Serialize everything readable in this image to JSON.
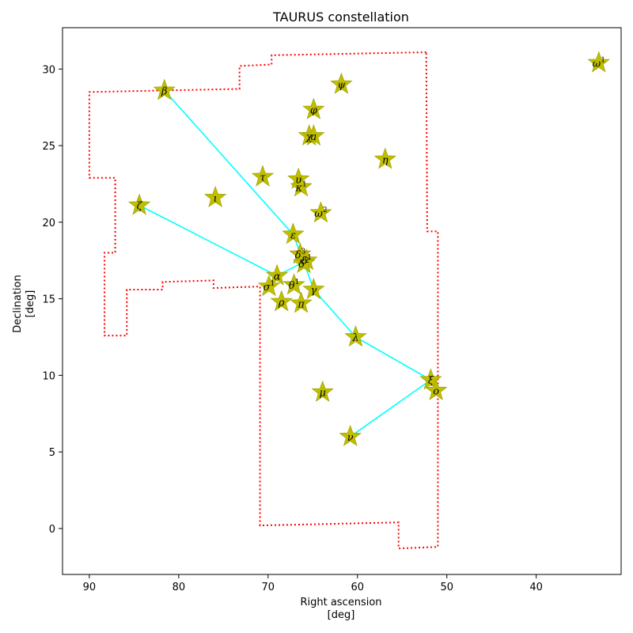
{
  "chart_data": {
    "type": "scatter",
    "title": "TAURUS constellation",
    "xlabel": [
      "Right ascension",
      "[deg]"
    ],
    "ylabel": [
      "Declination",
      "[deg]"
    ],
    "xlim": [
      93,
      30.5
    ],
    "ylim": [
      -3,
      32.7
    ],
    "x_inverted": true,
    "xticks": [
      90,
      80,
      70,
      60,
      50,
      40
    ],
    "yticks": [
      0,
      5,
      10,
      15,
      20,
      25,
      30
    ],
    "grid": false,
    "colors": {
      "boundary": "#ff0000",
      "lines": "#00ffff",
      "stars": "#bfbf00",
      "star_edge": "#9a9a00"
    },
    "stars": [
      {
        "label": "β",
        "sup": "",
        "ra": 81.6,
        "dec": 28.6
      },
      {
        "label": "ζ",
        "sup": "",
        "ra": 84.4,
        "dec": 21.1
      },
      {
        "label": "ι",
        "sup": "",
        "ra": 75.9,
        "dec": 21.6
      },
      {
        "label": "τ",
        "sup": "",
        "ra": 70.6,
        "dec": 22.96
      },
      {
        "label": "ψ",
        "sup": "",
        "ra": 61.8,
        "dec": 29.0
      },
      {
        "label": "φ",
        "sup": "",
        "ra": 64.9,
        "dec": 27.35
      },
      {
        "label": "χ",
        "sup": "",
        "ra": 65.4,
        "dec": 25.63
      },
      {
        "label": "a",
        "sup": "",
        "ra": 64.9,
        "dec": 25.63
      },
      {
        "label": "η",
        "sup": "",
        "ra": 56.9,
        "dec": 24.1
      },
      {
        "label": "υ",
        "sup": "",
        "ra": 66.6,
        "dec": 22.8
      },
      {
        "label": "κ",
        "sup": "1",
        "ra": 66.3,
        "dec": 22.3
      },
      {
        "label": "ω",
        "sup": "2",
        "ra": 64.1,
        "dec": 20.6
      },
      {
        "label": "ε",
        "sup": "",
        "ra": 67.2,
        "dec": 19.2
      },
      {
        "label": "δ",
        "sup": "3",
        "ra": 66.4,
        "dec": 17.9
      },
      {
        "label": "δ",
        "sup": "1",
        "ra": 65.7,
        "dec": 17.5
      },
      {
        "label": "δ",
        "sup": "2",
        "ra": 66.0,
        "dec": 17.3
      },
      {
        "label": "α",
        "sup": "",
        "ra": 69.0,
        "dec": 16.5
      },
      {
        "label": "σ",
        "sup": "1",
        "ra": 69.9,
        "dec": 15.8
      },
      {
        "label": "θ",
        "sup": "1",
        "ra": 67.1,
        "dec": 15.9
      },
      {
        "label": "ρ",
        "sup": "",
        "ra": 68.5,
        "dec": 14.8
      },
      {
        "label": "π",
        "sup": "",
        "ra": 66.3,
        "dec": 14.7
      },
      {
        "label": "γ",
        "sup": "",
        "ra": 64.9,
        "dec": 15.6
      },
      {
        "label": "λ",
        "sup": "",
        "ra": 60.2,
        "dec": 12.5
      },
      {
        "label": "ξ",
        "sup": "",
        "ra": 51.8,
        "dec": 9.7
      },
      {
        "label": "o",
        "sup": "",
        "ra": 51.2,
        "dec": 9.0
      },
      {
        "label": "μ",
        "sup": "",
        "ra": 63.9,
        "dec": 8.9
      },
      {
        "label": "ν",
        "sup": "",
        "ra": 60.8,
        "dec": 6.0
      },
      {
        "label": "ω",
        "sup": "1",
        "ra": 33.0,
        "dec": 30.4
      }
    ],
    "constellation_lines": [
      [
        [
          81.6,
          28.6
        ],
        [
          67.2,
          19.2
        ],
        [
          66.0,
          17.4
        ],
        [
          64.9,
          15.6
        ],
        [
          60.2,
          12.5
        ],
        [
          51.8,
          9.7
        ],
        [
          60.8,
          6.0
        ]
      ],
      [
        [
          84.4,
          21.1
        ],
        [
          69.0,
          16.5
        ],
        [
          66.0,
          17.4
        ]
      ]
    ],
    "boundary": [
      [
        52.3,
        31.1
      ],
      [
        69.6,
        30.9
      ],
      [
        69.6,
        30.3
      ],
      [
        73.2,
        30.2
      ],
      [
        73.2,
        28.7
      ],
      [
        90.0,
        28.5
      ],
      [
        90.0,
        22.9
      ],
      [
        87.1,
        22.9
      ],
      [
        87.1,
        18.0
      ],
      [
        88.3,
        18.0
      ],
      [
        88.3,
        12.6
      ],
      [
        85.8,
        12.6
      ],
      [
        85.8,
        15.6
      ],
      [
        81.8,
        15.6
      ],
      [
        81.8,
        16.1
      ],
      [
        76.1,
        16.2
      ],
      [
        76.1,
        15.7
      ],
      [
        70.9,
        15.8
      ],
      [
        70.9,
        0.2
      ],
      [
        55.4,
        0.4
      ],
      [
        55.4,
        -1.3
      ],
      [
        51.0,
        -1.2
      ],
      [
        51.0,
        19.4
      ],
      [
        52.2,
        19.4
      ],
      [
        52.3,
        31.1
      ]
    ]
  }
}
